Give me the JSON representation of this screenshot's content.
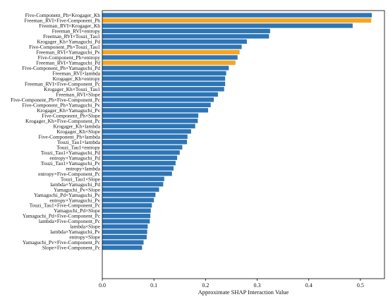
{
  "chart_data": {
    "type": "bar",
    "orientation": "horizontal",
    "title": "",
    "xlabel": "Approximate SHAP Interaction Value",
    "ylabel": "",
    "xlim": [
      0,
      0.55
    ],
    "xticks": [
      "0.0",
      "0.1",
      "0.2",
      "0.3",
      "0.4",
      "0.5"
    ],
    "grid": false,
    "colors": {
      "default": "#2e75b6",
      "highlight": "#f5a623"
    },
    "categories": [
      "Five-Component_Ph×Krogager_Kh",
      "Freeman_RVI×Five-Component_Ph",
      "Freeman_RVI×Krogager_Kh",
      "Freeman_RVI×entropy",
      "Freeman_RVI×Touzi_Tau1",
      "Krogager_Kh×Yamaguchi_Pd",
      "Five-Component_Ph×Touzi_Tau1",
      "Freeman_RVI×Yamaguchi_Pv",
      "Five-Component_Ph×entropy",
      "Freeman_RVI×Yamaguchi_Pd",
      "Five-Component_Ph×Yamaguchi_Pd",
      "Freeman_RVI×lambda",
      "Krogager_Kh×entropy",
      "Freeman_RVI×Five-Component_Pc",
      "Krogager_Kh×Touzi_Tau1",
      "Freeman_RVI×Slope",
      "Five-Component_Ph×Five-Component_Pc",
      "Five-Component_Ph×Yamaguchi_Pv",
      "Krogager_Kh×Yamaguchi_Pv",
      "Five-Component_Ph×Slope",
      "Krogager_Kh×Five-Component_Pc",
      "Krogager_Kh×lambda",
      "Krogager_Kh×Slope",
      "Five-Component_Ph×lambda",
      "Touzi_Tau1×lambda",
      "Touzi_Tau1×entropy",
      "Touzi_Tau1×Yamaguchi_Pd",
      "entropy×Yamaguchi_Pd",
      "Touzi_Tau1×Yamaguchi_Pv",
      "entropy×lambda",
      "entropy×Five-Component_Pc",
      "Touzi_Tau1×Slope",
      "lambda×Yamaguchi_Pd",
      "Yamaguchi_Pv×Slope",
      "Yamaguchi_Pd×Yamaguchi_Pv",
      "entropy×Yamaguchi_Pv",
      "Touzi_Tau1×Five-Component_Pc",
      "Yamaguchi_Pd×Slope",
      "Yamaguchi_Pd×Five-Component_Pc",
      "lambda×Five-Component_Pc",
      "lambda×Slope",
      "lambda×Yamaguchi_Pv",
      "entropy×Slope",
      "Yamaguchi_Pv×Five-Component_Pc",
      "Slope×Five-Component_Pc"
    ],
    "values": [
      0.522,
      0.521,
      0.485,
      0.325,
      0.323,
      0.28,
      0.27,
      0.266,
      0.262,
      0.258,
      0.245,
      0.24,
      0.238,
      0.238,
      0.236,
      0.224,
      0.216,
      0.21,
      0.205,
      0.186,
      0.185,
      0.18,
      0.172,
      0.165,
      0.164,
      0.155,
      0.15,
      0.145,
      0.142,
      0.138,
      0.135,
      0.12,
      0.118,
      0.11,
      0.103,
      0.1,
      0.096,
      0.094,
      0.093,
      0.092,
      0.088,
      0.087,
      0.086,
      0.08,
      0.077
    ],
    "highlighted": [
      "Freeman_RVI×Five-Component_Ph",
      "Freeman_RVI×Yamaguchi_Pv",
      "Freeman_RVI×Yamaguchi_Pd"
    ]
  }
}
